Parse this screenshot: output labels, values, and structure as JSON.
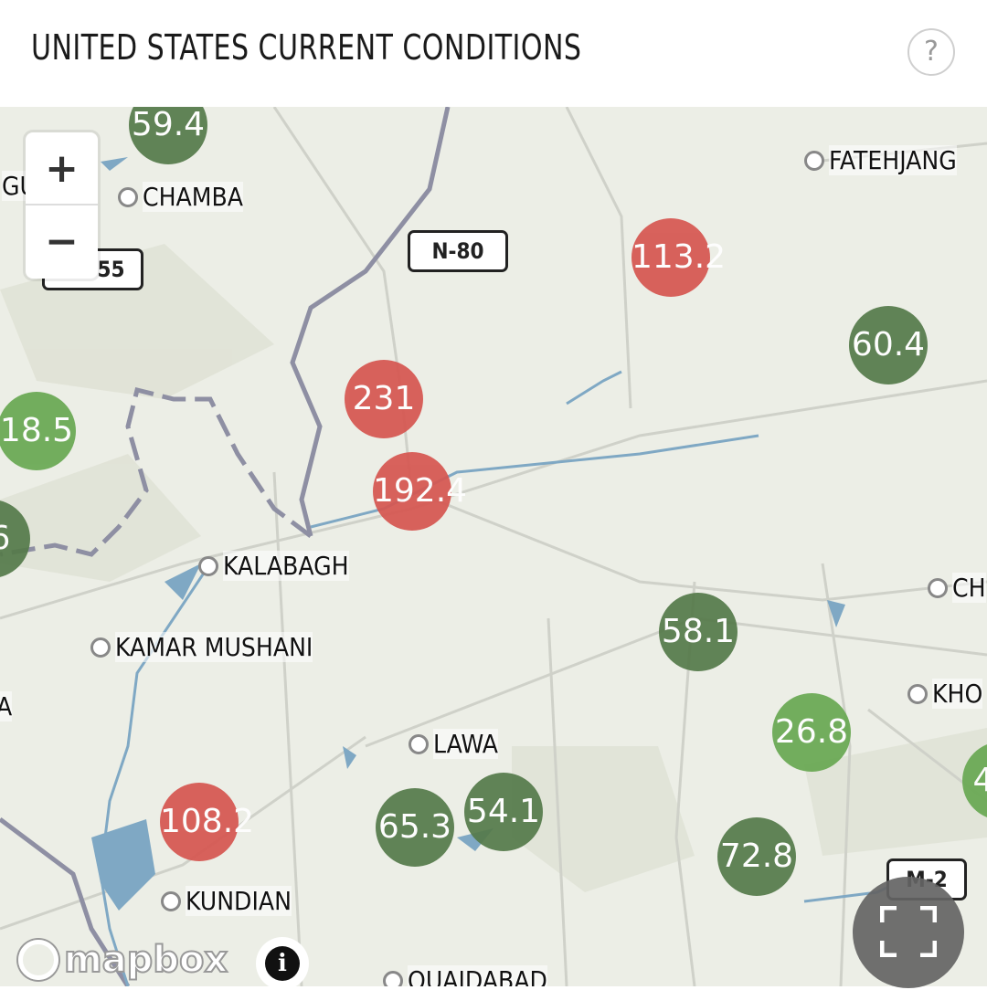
{
  "header": {
    "title": "UNITED STATES CURRENT CONDITIONS",
    "help_label": "?"
  },
  "map": {
    "zoom_in_label": "+",
    "zoom_out_label": "−",
    "attribution": "mapbox",
    "info_label": "i",
    "fullscreen_icon": "expand-icon",
    "colors": {
      "high": "#d65650",
      "moderate": "#557a4a",
      "low": "#68a852"
    },
    "markers": [
      {
        "value": "59.4",
        "level": "moderate"
      },
      {
        "value": "113.2",
        "level": "high"
      },
      {
        "value": "60.4",
        "level": "moderate"
      },
      {
        "value": "231",
        "level": "high"
      },
      {
        "value": "18.5",
        "level": "low"
      },
      {
        "value": "192.4",
        "level": "high"
      },
      {
        "value": "6",
        "level": "moderate"
      },
      {
        "value": "58.1",
        "level": "moderate"
      },
      {
        "value": "26.8",
        "level": "low"
      },
      {
        "value": "4",
        "level": "low"
      },
      {
        "value": "108.2",
        "level": "high"
      },
      {
        "value": "65.3",
        "level": "moderate"
      },
      {
        "value": "54.1",
        "level": "moderate"
      },
      {
        "value": "72.8",
        "level": "moderate"
      }
    ],
    "cities": [
      "FATEHJANG",
      "CHAMBA",
      "KALABAGH",
      "KAMAR MUSHANI",
      "LAWA",
      "KUNDIAN",
      "QUAIDABAD",
      "CH",
      "KHO",
      "GU",
      "A"
    ],
    "road_shields": [
      "N-80",
      "55",
      "M-2"
    ]
  }
}
